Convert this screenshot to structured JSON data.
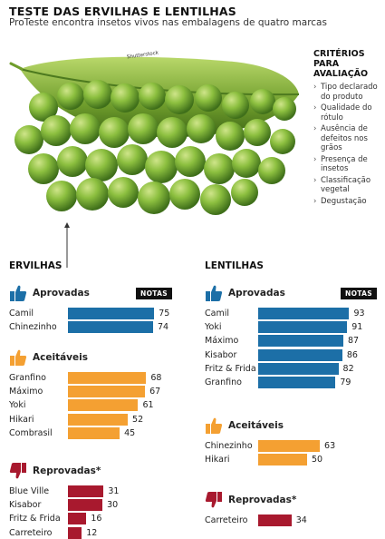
{
  "header": {
    "title": "TESTE DAS ERVILHAS E LENTILHAS",
    "subtitle": "ProTeste encontra insetos vivos nas embalagens de quatro marcas",
    "credit": "Shutterstock"
  },
  "criteria": {
    "title": "CRITÉRIOS PARA AVALIAÇÃO",
    "items": [
      "Tipo declarado do produto",
      "Qualidade do rótulo",
      "Ausência de defeitos nos grãos",
      "Presença de insetos",
      "Classificação vegetal",
      "Degustação"
    ]
  },
  "colors": {
    "approved": "#1c6fa7",
    "acceptable": "#f4a032",
    "rejected": "#a8192e"
  },
  "icons": {
    "approved": "thumbs-up-icon",
    "acceptable": "thumbs-up-icon",
    "rejected": "thumbs-down-icon"
  },
  "chart_data": [
    {
      "type": "bar",
      "title": "ERVILHAS",
      "value_label": "NOTAS",
      "groups": [
        {
          "name": "Aprovadas",
          "color": "#1c6fa7",
          "categories": [
            "Camil",
            "Chinezinho"
          ],
          "values": [
            75,
            74
          ]
        },
        {
          "name": "Aceitáveis",
          "color": "#f4a032",
          "categories": [
            "Granfino",
            "Máximo",
            "Yoki",
            "Hikari",
            "Combrasil"
          ],
          "values": [
            68,
            67,
            61,
            52,
            45
          ]
        },
        {
          "name": "Reprovadas*",
          "color": "#a8192e",
          "categories": [
            "Blue Ville",
            "Kisabor",
            "Fritz & Frida",
            "Carreteiro"
          ],
          "values": [
            31,
            30,
            16,
            12
          ]
        }
      ]
    },
    {
      "type": "bar",
      "title": "LENTILHAS",
      "value_label": "NOTAS",
      "groups": [
        {
          "name": "Aprovadas",
          "color": "#1c6fa7",
          "categories": [
            "Camil",
            "Yoki",
            "Máximo",
            "Kisabor",
            "Fritz & Frida",
            "Granfino"
          ],
          "values": [
            93,
            91,
            87,
            86,
            82,
            79
          ]
        },
        {
          "name": "Aceitáveis",
          "color": "#f4a032",
          "categories": [
            "Chinezinho",
            "Hikari"
          ],
          "values": [
            63,
            50
          ]
        },
        {
          "name": "Reprovadas*",
          "color": "#a8192e",
          "categories": [
            "Carreteiro"
          ],
          "values": [
            34
          ]
        }
      ]
    }
  ]
}
